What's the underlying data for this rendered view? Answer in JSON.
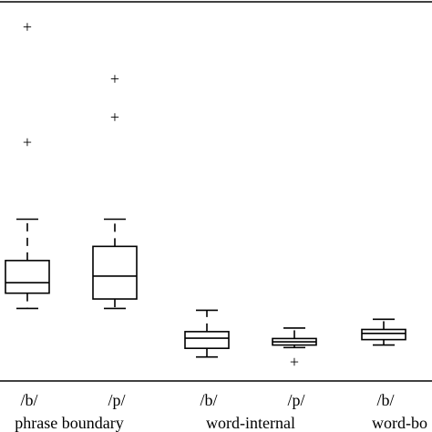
{
  "chart_data": {
    "type": "boxplot",
    "title": "",
    "xlabel": "",
    "ylabel": "",
    "ylim": [
      0,
      100
    ],
    "grid": false,
    "categories": [
      {
        "label": "/b/",
        "group": "phrase boundary"
      },
      {
        "label": "/p/",
        "group": "phrase boundary"
      },
      {
        "label": "/b/",
        "group": "word-internal"
      },
      {
        "label": "/p/",
        "group": "word-internal"
      },
      {
        "label": "/b/",
        "group": "word-bo"
      }
    ],
    "groups": [
      "phrase boundary",
      "word-internal",
      "word-bo"
    ],
    "boxes": [
      {
        "whisker_low": 20.0,
        "q1": 24.2,
        "median": 27.1,
        "q3": 33.2,
        "whisker_high": 44.6,
        "outliers": [
          97.6,
          65.8
        ]
      },
      {
        "whisker_low": 20.0,
        "q1": 22.6,
        "median": 28.9,
        "q3": 37.1,
        "whisker_high": 44.6,
        "outliers": [
          83.3,
          72.8
        ]
      },
      {
        "whisker_low": 6.6,
        "q1": 9.0,
        "median": 11.8,
        "q3": 13.6,
        "whisker_high": 19.5
      },
      {
        "whisker_low": 9.2,
        "q1": 9.9,
        "median": 10.8,
        "q3": 11.7,
        "whisker_high": 14.6,
        "outliers": [
          5.3
        ]
      },
      {
        "whisker_low": 9.9,
        "q1": 11.4,
        "median": 13.1,
        "q3": 14.2,
        "whisker_high": 17.0
      }
    ]
  }
}
